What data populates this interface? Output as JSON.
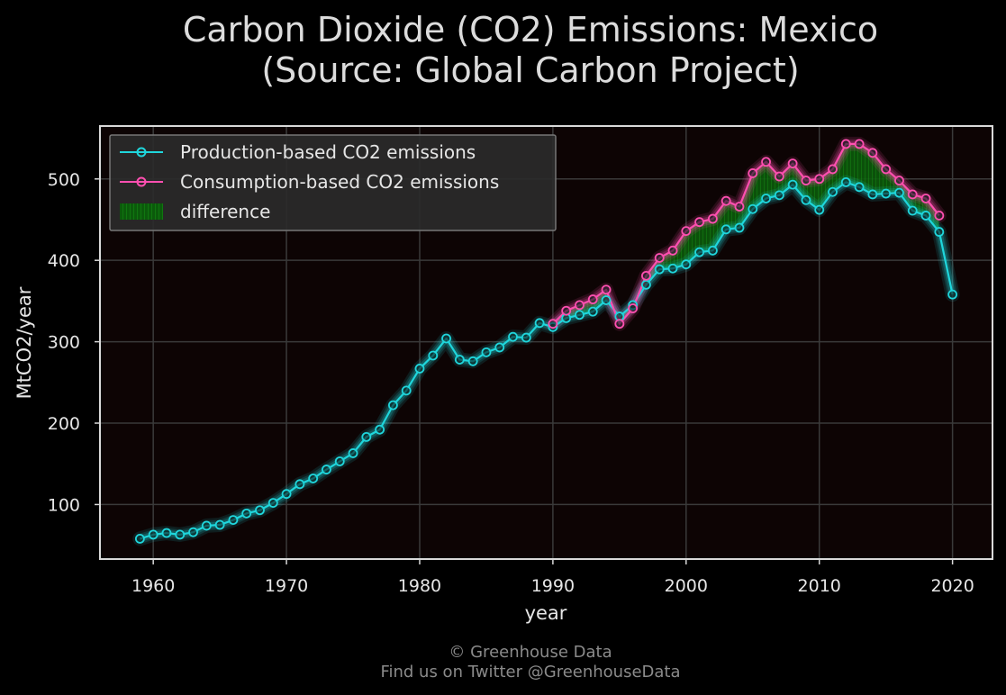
{
  "title_lines": [
    "Carbon Dioxide (CO2) Emissions: Mexico",
    "(Source: Global Carbon Project)"
  ],
  "footer_lines": [
    "© Greenhouse Data",
    "Find us on Twitter @GreenhouseData"
  ],
  "colors": {
    "background": "#000000",
    "plot_background": "#0d0404",
    "grid": "#3a3a3a",
    "frame": "#d9d9d9",
    "production": "#1fd6dc",
    "consumption": "#ff4fb0",
    "difference": "#0e6b0e"
  },
  "chart_data": {
    "type": "line",
    "xlabel": "year",
    "ylabel": "MtCO2/year",
    "xlim": [
      1956,
      2023
    ],
    "ylim": [
      33,
      565
    ],
    "x_ticks": [
      1960,
      1970,
      1980,
      1990,
      2000,
      2010,
      2020
    ],
    "y_ticks": [
      100,
      200,
      300,
      400,
      500
    ],
    "grid": true,
    "legend_position": "top-left",
    "legend": [
      "Production-based CO2 emissions",
      "Consumption-based CO2 emissions",
      "difference"
    ],
    "series": [
      {
        "name": "Production-based CO2 emissions",
        "x": [
          1959,
          1960,
          1961,
          1962,
          1963,
          1964,
          1965,
          1966,
          1967,
          1968,
          1969,
          1970,
          1971,
          1972,
          1973,
          1974,
          1975,
          1976,
          1977,
          1978,
          1979,
          1980,
          1981,
          1982,
          1983,
          1984,
          1985,
          1986,
          1987,
          1988,
          1989,
          1990,
          1991,
          1992,
          1993,
          1994,
          1995,
          1996,
          1997,
          1998,
          1999,
          2000,
          2001,
          2002,
          2003,
          2004,
          2005,
          2006,
          2007,
          2008,
          2009,
          2010,
          2011,
          2012,
          2013,
          2014,
          2015,
          2016,
          2017,
          2018,
          2019,
          2020
        ],
        "values": [
          58,
          63,
          65,
          63,
          66,
          74,
          75,
          81,
          89,
          93,
          102,
          113,
          125,
          132,
          143,
          153,
          163,
          183,
          192,
          222,
          240,
          267,
          283,
          304,
          278,
          276,
          287,
          293,
          306,
          305,
          323,
          318,
          329,
          333,
          337,
          351,
          331,
          345,
          370,
          389,
          390,
          395,
          410,
          412,
          438,
          440,
          463,
          476,
          480,
          493,
          474,
          462,
          484,
          496,
          490,
          481,
          482,
          483,
          461,
          455,
          435,
          358
        ]
      },
      {
        "name": "Consumption-based CO2 emissions",
        "x": [
          1990,
          1991,
          1992,
          1993,
          1994,
          1995,
          1996,
          1997,
          1998,
          1999,
          2000,
          2001,
          2002,
          2003,
          2004,
          2005,
          2006,
          2007,
          2008,
          2009,
          2010,
          2011,
          2012,
          2013,
          2014,
          2015,
          2016,
          2017,
          2018,
          2019
        ],
        "values": [
          322,
          338,
          345,
          352,
          364,
          322,
          341,
          381,
          403,
          412,
          436,
          447,
          451,
          473,
          466,
          507,
          521,
          503,
          519,
          498,
          500,
          512,
          543,
          543,
          532,
          512,
          498,
          481,
          476,
          455
        ]
      }
    ]
  }
}
